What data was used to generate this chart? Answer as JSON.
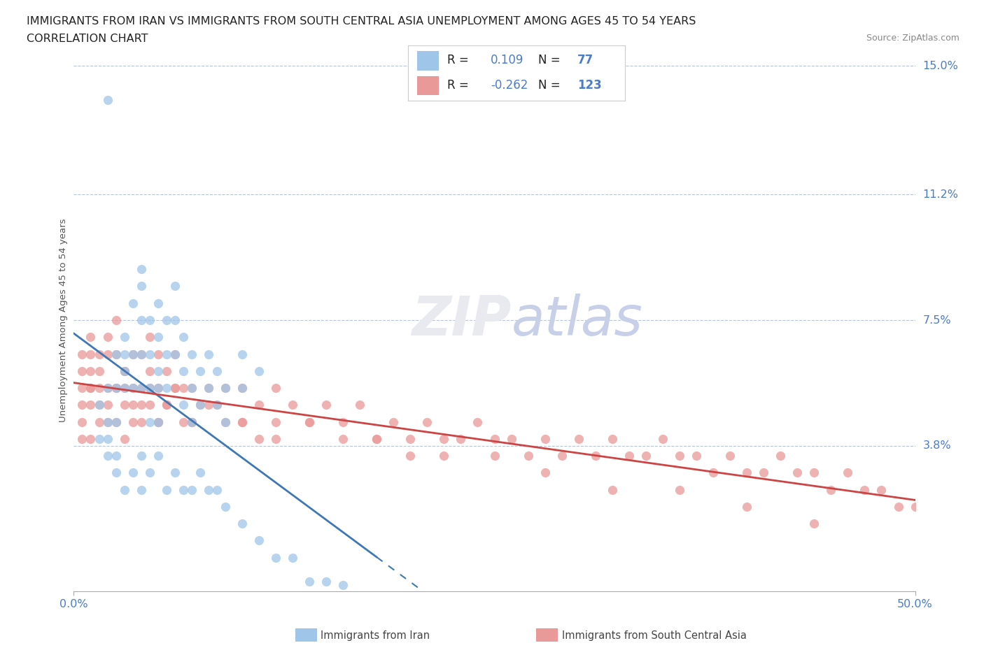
{
  "title_line1": "IMMIGRANTS FROM IRAN VS IMMIGRANTS FROM SOUTH CENTRAL ASIA UNEMPLOYMENT AMONG AGES 45 TO 54 YEARS",
  "title_line2": "CORRELATION CHART",
  "source_text": "Source: ZipAtlas.com",
  "ylabel": "Unemployment Among Ages 45 to 54 years",
  "xlim": [
    0.0,
    0.5
  ],
  "ylim": [
    -0.005,
    0.155
  ],
  "ytick_labels": [
    "15.0%",
    "11.2%",
    "7.5%",
    "3.8%"
  ],
  "ytick_positions": [
    0.15,
    0.112,
    0.075,
    0.038
  ],
  "xtick_labels": [
    "0.0%",
    "50.0%"
  ],
  "xtick_positions": [
    0.0,
    0.5
  ],
  "iran_R": "0.109",
  "iran_N": "77",
  "sca_R": "-0.262",
  "sca_N": "123",
  "iran_color": "#9fc5e8",
  "sca_color": "#ea9999",
  "iran_line_color": "#3d78b5",
  "sca_line_color": "#cc4444",
  "watermark_color": "#e8eaf0",
  "legend_iran": "Immigrants from Iran",
  "legend_sca": "Immigrants from South Central Asia",
  "iran_scatter_x": [
    0.02,
    0.02,
    0.02,
    0.025,
    0.025,
    0.025,
    0.03,
    0.03,
    0.03,
    0.03,
    0.035,
    0.035,
    0.035,
    0.04,
    0.04,
    0.04,
    0.04,
    0.04,
    0.045,
    0.045,
    0.045,
    0.045,
    0.05,
    0.05,
    0.05,
    0.05,
    0.05,
    0.055,
    0.055,
    0.055,
    0.06,
    0.06,
    0.06,
    0.065,
    0.065,
    0.065,
    0.07,
    0.07,
    0.07,
    0.075,
    0.075,
    0.08,
    0.08,
    0.085,
    0.085,
    0.09,
    0.09,
    0.1,
    0.1,
    0.11,
    0.02,
    0.025,
    0.03,
    0.035,
    0.04,
    0.04,
    0.045,
    0.05,
    0.055,
    0.06,
    0.065,
    0.07,
    0.075,
    0.08,
    0.085,
    0.09,
    0.1,
    0.11,
    0.12,
    0.13,
    0.14,
    0.15,
    0.16,
    0.015,
    0.015,
    0.02,
    0.025
  ],
  "iran_scatter_y": [
    0.14,
    0.055,
    0.045,
    0.065,
    0.055,
    0.045,
    0.07,
    0.065,
    0.06,
    0.055,
    0.08,
    0.065,
    0.055,
    0.09,
    0.085,
    0.075,
    0.065,
    0.055,
    0.075,
    0.065,
    0.055,
    0.045,
    0.08,
    0.07,
    0.06,
    0.055,
    0.045,
    0.075,
    0.065,
    0.055,
    0.085,
    0.075,
    0.065,
    0.07,
    0.06,
    0.05,
    0.065,
    0.055,
    0.045,
    0.06,
    0.05,
    0.065,
    0.055,
    0.06,
    0.05,
    0.055,
    0.045,
    0.065,
    0.055,
    0.06,
    0.035,
    0.03,
    0.025,
    0.03,
    0.035,
    0.025,
    0.03,
    0.035,
    0.025,
    0.03,
    0.025,
    0.025,
    0.03,
    0.025,
    0.025,
    0.02,
    0.015,
    0.01,
    0.005,
    0.005,
    -0.002,
    -0.002,
    -0.003,
    0.05,
    0.04,
    0.04,
    0.035
  ],
  "sca_scatter_x": [
    0.005,
    0.005,
    0.005,
    0.005,
    0.005,
    0.01,
    0.01,
    0.01,
    0.01,
    0.01,
    0.01,
    0.015,
    0.015,
    0.015,
    0.015,
    0.02,
    0.02,
    0.02,
    0.02,
    0.025,
    0.025,
    0.025,
    0.025,
    0.03,
    0.03,
    0.03,
    0.03,
    0.035,
    0.035,
    0.035,
    0.04,
    0.04,
    0.04,
    0.045,
    0.045,
    0.045,
    0.05,
    0.05,
    0.05,
    0.055,
    0.055,
    0.06,
    0.06,
    0.065,
    0.065,
    0.07,
    0.07,
    0.075,
    0.08,
    0.085,
    0.09,
    0.1,
    0.1,
    0.11,
    0.12,
    0.12,
    0.13,
    0.14,
    0.15,
    0.16,
    0.17,
    0.18,
    0.19,
    0.2,
    0.21,
    0.22,
    0.23,
    0.24,
    0.25,
    0.26,
    0.27,
    0.28,
    0.29,
    0.3,
    0.31,
    0.32,
    0.33,
    0.34,
    0.35,
    0.36,
    0.37,
    0.38,
    0.39,
    0.4,
    0.41,
    0.42,
    0.43,
    0.44,
    0.45,
    0.46,
    0.47,
    0.48,
    0.49,
    0.5,
    0.005,
    0.01,
    0.015,
    0.02,
    0.025,
    0.03,
    0.035,
    0.04,
    0.045,
    0.05,
    0.055,
    0.06,
    0.07,
    0.08,
    0.09,
    0.1,
    0.11,
    0.12,
    0.14,
    0.16,
    0.18,
    0.2,
    0.22,
    0.25,
    0.28,
    0.32,
    0.36,
    0.4,
    0.44
  ],
  "sca_scatter_y": [
    0.065,
    0.055,
    0.05,
    0.045,
    0.04,
    0.07,
    0.065,
    0.06,
    0.055,
    0.05,
    0.04,
    0.065,
    0.055,
    0.05,
    0.045,
    0.07,
    0.065,
    0.055,
    0.045,
    0.075,
    0.065,
    0.055,
    0.045,
    0.06,
    0.055,
    0.05,
    0.04,
    0.065,
    0.055,
    0.045,
    0.065,
    0.055,
    0.045,
    0.07,
    0.06,
    0.05,
    0.065,
    0.055,
    0.045,
    0.06,
    0.05,
    0.065,
    0.055,
    0.055,
    0.045,
    0.055,
    0.045,
    0.05,
    0.055,
    0.05,
    0.055,
    0.055,
    0.045,
    0.05,
    0.055,
    0.045,
    0.05,
    0.045,
    0.05,
    0.045,
    0.05,
    0.04,
    0.045,
    0.04,
    0.045,
    0.04,
    0.04,
    0.045,
    0.04,
    0.04,
    0.035,
    0.04,
    0.035,
    0.04,
    0.035,
    0.04,
    0.035,
    0.035,
    0.04,
    0.035,
    0.035,
    0.03,
    0.035,
    0.03,
    0.03,
    0.035,
    0.03,
    0.03,
    0.025,
    0.03,
    0.025,
    0.025,
    0.02,
    0.02,
    0.06,
    0.055,
    0.06,
    0.05,
    0.055,
    0.06,
    0.05,
    0.05,
    0.055,
    0.045,
    0.05,
    0.055,
    0.045,
    0.05,
    0.045,
    0.045,
    0.04,
    0.04,
    0.045,
    0.04,
    0.04,
    0.035,
    0.035,
    0.035,
    0.03,
    0.025,
    0.025,
    0.02,
    0.015
  ]
}
